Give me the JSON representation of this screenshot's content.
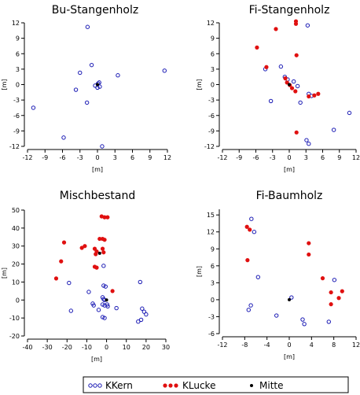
{
  "legend": {
    "kern_label": "KKern",
    "lucke_label": "KLucke",
    "mitte_label": "Mitte"
  },
  "colors": {
    "kern": "#1a1ab4",
    "lucke": "#e01010",
    "mitte": "#000000",
    "axis": "#000000"
  },
  "chart_data": [
    {
      "id": "bu",
      "type": "scatter",
      "title": "Bu-Stangenholz",
      "xlabel": "[m]",
      "ylabel": "[m]",
      "xlim": [
        -12,
        12
      ],
      "ylim": [
        -12,
        12
      ],
      "xticks": [
        -12,
        -9,
        -6,
        -3,
        0,
        3,
        6,
        9,
        12
      ],
      "yticks": [
        -12,
        -9,
        -6,
        -3,
        0,
        3,
        6,
        9,
        12
      ],
      "grid": false,
      "series": [
        {
          "name": "KKern",
          "marker": "open-circle",
          "points": [
            [
              -1.7,
              11.2
            ],
            [
              -11,
              -4.5
            ],
            [
              -5.8,
              -10.3
            ],
            [
              -3,
              2.3
            ],
            [
              -3.7,
              -1
            ],
            [
              -1.8,
              -3.5
            ],
            [
              -1,
              3.8
            ],
            [
              -0.4,
              -0.2
            ],
            [
              0,
              -0.6
            ],
            [
              0.1,
              0.2
            ],
            [
              0.3,
              0.4
            ],
            [
              0.4,
              -0.4
            ],
            [
              0.8,
              -12
            ],
            [
              3.5,
              1.8
            ],
            [
              11.5,
              2.7
            ]
          ]
        },
        {
          "name": "KLucke",
          "marker": "filled-circle",
          "points": []
        },
        {
          "name": "Mitte",
          "marker": "filled-dot",
          "points": [
            [
              0,
              0
            ]
          ]
        }
      ]
    },
    {
      "id": "fi_stangen",
      "type": "scatter",
      "title": "Fi-Stangenholz",
      "xlabel": "[m]",
      "ylabel": "[m]",
      "xlim": [
        -12,
        12
      ],
      "ylim": [
        -12,
        12
      ],
      "xticks": [
        -12,
        -9,
        -6,
        -3,
        0,
        3,
        6,
        9,
        12
      ],
      "yticks": [
        -12,
        -9,
        -6,
        -3,
        0,
        3,
        6,
        9,
        12
      ],
      "grid": false,
      "series": [
        {
          "name": "KKern",
          "marker": "open-circle",
          "points": [
            [
              3.3,
              11.5
            ],
            [
              -1.5,
              3.5
            ],
            [
              -4.3,
              3
            ],
            [
              -3.3,
              -3.2
            ],
            [
              -0.8,
              1.5
            ],
            [
              -0.3,
              1
            ],
            [
              1.5,
              -0.3
            ],
            [
              2,
              -3.5
            ],
            [
              3.5,
              -1.8
            ],
            [
              4,
              -2.2
            ],
            [
              3.1,
              -10.8
            ],
            [
              3.5,
              -11.5
            ],
            [
              8,
              -8.8
            ],
            [
              10.8,
              -5.5
            ],
            [
              0.8,
              0.6
            ]
          ]
        },
        {
          "name": "KLucke",
          "marker": "filled-circle",
          "points": [
            [
              1.2,
              12.3
            ],
            [
              1.2,
              11.8
            ],
            [
              -2.4,
              10.8
            ],
            [
              -5.8,
              7.2
            ],
            [
              1.3,
              5.7
            ],
            [
              -4.1,
              3.4
            ],
            [
              -0.7,
              1.2
            ],
            [
              -0.4,
              0.4
            ],
            [
              0.1,
              -0.1
            ],
            [
              0.5,
              -0.7
            ],
            [
              1.1,
              -1.3
            ],
            [
              3.5,
              -2.3
            ],
            [
              4.5,
              -2.1
            ],
            [
              5.2,
              -1.8
            ],
            [
              1.3,
              -9.3
            ]
          ]
        },
        {
          "name": "Mitte",
          "marker": "filled-dot",
          "points": [
            [
              0,
              0
            ]
          ]
        }
      ]
    },
    {
      "id": "misch",
      "type": "scatter",
      "title": "Mischbestand",
      "xlabel": "[m]",
      "ylabel": "[m]",
      "xlim": [
        -40,
        30
      ],
      "ylim": [
        -20,
        50
      ],
      "xticks": [
        -40,
        -30,
        -20,
        -10,
        0,
        10,
        20,
        30
      ],
      "yticks": [
        -20,
        -10,
        0,
        10,
        20,
        30,
        40,
        50
      ],
      "grid": false,
      "series": [
        {
          "name": "KKern",
          "marker": "open-circle",
          "points": [
            [
              -1.5,
              19
            ],
            [
              -19,
              9.5
            ],
            [
              -1.5,
              8
            ],
            [
              -0.5,
              7.5
            ],
            [
              -9,
              4.5
            ],
            [
              -2,
              1.5
            ],
            [
              -1.5,
              0.5
            ],
            [
              -7,
              -2
            ],
            [
              -6.5,
              -3
            ],
            [
              -2,
              -2.5
            ],
            [
              -1,
              -3
            ],
            [
              0.3,
              -2.5
            ],
            [
              0.6,
              -3.5
            ],
            [
              -4,
              -5.5
            ],
            [
              -18,
              -6
            ],
            [
              -2,
              -9.5
            ],
            [
              -1,
              -10
            ],
            [
              5,
              -4.5
            ],
            [
              17,
              10
            ],
            [
              18,
              -4.8
            ],
            [
              19,
              -6.5
            ],
            [
              20,
              -8
            ],
            [
              16,
              -12
            ],
            [
              17.5,
              -11
            ],
            [
              -1,
              0
            ]
          ]
        },
        {
          "name": "KLucke",
          "marker": "filled-circle",
          "points": [
            [
              -2.5,
              46.5
            ],
            [
              -1,
              46
            ],
            [
              0.5,
              46
            ],
            [
              -3.5,
              34
            ],
            [
              -2,
              34
            ],
            [
              -1,
              33.5
            ],
            [
              -11,
              30
            ],
            [
              -12.5,
              29
            ],
            [
              -6,
              28.5
            ],
            [
              -5,
              27
            ],
            [
              -2,
              28.5
            ],
            [
              -21.5,
              32
            ],
            [
              -23,
              21.5
            ],
            [
              -5.5,
              25.5
            ],
            [
              -1.5,
              26.5
            ],
            [
              -6,
              18.5
            ],
            [
              -5,
              18
            ],
            [
              -25.5,
              12
            ],
            [
              3,
              5
            ]
          ]
        },
        {
          "name": "Mitte",
          "marker": "filled-dot",
          "points": [
            [
              -3.5,
              26
            ],
            [
              0,
              0
            ]
          ]
        }
      ]
    },
    {
      "id": "fi_baum",
      "type": "scatter",
      "title": "Fi-Baumholz",
      "xlabel": "[m]",
      "ylabel": "[m]",
      "xlim": [
        -12,
        12
      ],
      "ylim": [
        -6,
        16
      ],
      "xticks": [
        -12,
        -8,
        -4,
        0,
        4,
        8,
        12
      ],
      "yticks": [
        -6,
        -3,
        0,
        3,
        6,
        9,
        12,
        15
      ],
      "grid": false,
      "series": [
        {
          "name": "KKern",
          "marker": "open-circle",
          "points": [
            [
              -6.8,
              14.3
            ],
            [
              -6.3,
              12
            ],
            [
              -5.6,
              4
            ],
            [
              -6.9,
              -1
            ],
            [
              -7.3,
              -1.8
            ],
            [
              -2.3,
              -2.8
            ],
            [
              2.4,
              -3.5
            ],
            [
              2.7,
              -4.3
            ],
            [
              8.1,
              3.5
            ],
            [
              7.1,
              -3.9
            ],
            [
              0.4,
              0.4
            ]
          ]
        },
        {
          "name": "KLucke",
          "marker": "filled-circle",
          "points": [
            [
              -7.6,
              12.9
            ],
            [
              -7.1,
              12.4
            ],
            [
              3.5,
              10
            ],
            [
              3.5,
              8
            ],
            [
              -7.5,
              7
            ],
            [
              6,
              3.8
            ],
            [
              7.5,
              1.3
            ],
            [
              9.5,
              1.5
            ],
            [
              8.9,
              0.3
            ],
            [
              7.5,
              -0.8
            ]
          ]
        },
        {
          "name": "Mitte",
          "marker": "filled-dot",
          "points": [
            [
              0,
              0
            ]
          ]
        }
      ]
    }
  ]
}
